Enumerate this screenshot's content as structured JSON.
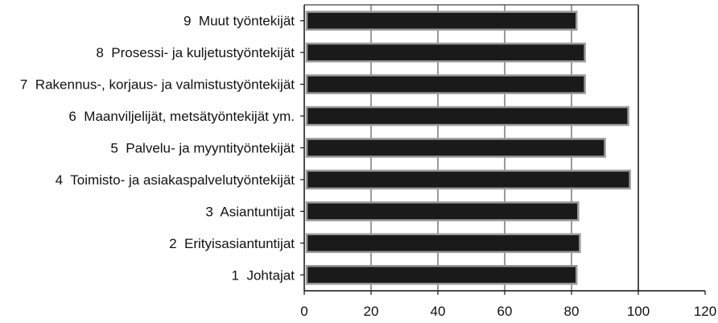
{
  "chart_data": {
    "type": "bar",
    "orientation": "horizontal",
    "categories": [
      "9  Muut työntekijät",
      "8  Prosessi- ja kuljetustyöntekijät",
      "7  Rakennus-, korjaus- ja valmistustyöntekijät",
      "6  Maanviljelijät, metsätyöntekijät ym.",
      "5  Palvelu- ja myyntityöntekijät",
      "4  Toimisto- ja asiakaspalvelutyöntekijät",
      "3  Asiantuntijat",
      "2  Erityisasiantuntijat",
      "1  Johtajat"
    ],
    "values": [
      81.5,
      84,
      84,
      97,
      90,
      97.5,
      82,
      82.5,
      81.5
    ],
    "xlim": [
      0,
      120
    ],
    "xticks": [
      "0",
      "20",
      "40",
      "60",
      "80",
      "100",
      "120"
    ],
    "reference_line": 100,
    "grid": "vertical",
    "title": "",
    "xlabel": "",
    "ylabel": "",
    "colors": {
      "bar": "#1a1a1a",
      "bar_outline": "#9a9a9a",
      "grid": "#333333"
    }
  }
}
